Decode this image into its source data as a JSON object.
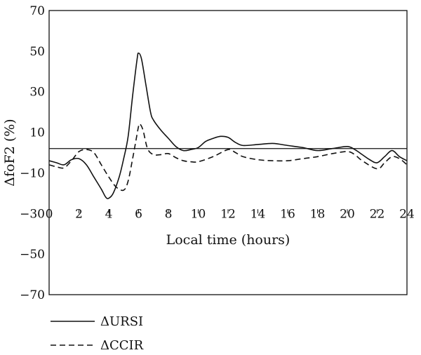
{
  "chart_data": {
    "type": "line",
    "title": "",
    "xlabel": "Local time (hours)",
    "ylabel": "ΔfoF2 (%)",
    "xlim": [
      0,
      24
    ],
    "ylim": [
      -70,
      70
    ],
    "x_ticks": [
      "0",
      "2",
      "4",
      "6",
      "8",
      "10",
      "12",
      "14",
      "16",
      "18",
      "20",
      "22",
      "24"
    ],
    "y_ticks": [
      "70",
      "50",
      "30",
      "10",
      "−10",
      "−30",
      "−50",
      "−70"
    ],
    "grid": false,
    "legend_position": "bottom-left",
    "reference_line_y": 2,
    "series": [
      {
        "name": "ΔURSI",
        "style": "solid",
        "color": "#111111",
        "points": [
          [
            0,
            -4
          ],
          [
            0.5,
            -5
          ],
          [
            1,
            -6
          ],
          [
            1.5,
            -3.5
          ],
          [
            2,
            -3
          ],
          [
            2.5,
            -6
          ],
          [
            3,
            -12
          ],
          [
            3.5,
            -18
          ],
          [
            3.8,
            -22
          ],
          [
            4,
            -22.5
          ],
          [
            4.3,
            -20
          ],
          [
            4.7,
            -12
          ],
          [
            5,
            -3
          ],
          [
            5.3,
            8
          ],
          [
            5.6,
            28
          ],
          [
            5.9,
            46
          ],
          [
            6,
            49
          ],
          [
            6.2,
            46
          ],
          [
            6.5,
            33
          ],
          [
            6.8,
            20
          ],
          [
            7,
            16
          ],
          [
            7.5,
            11
          ],
          [
            8,
            7
          ],
          [
            8.5,
            3
          ],
          [
            9,
            1
          ],
          [
            9.5,
            1.5
          ],
          [
            10,
            2.5
          ],
          [
            10.5,
            5.5
          ],
          [
            11,
            7
          ],
          [
            11.5,
            8
          ],
          [
            12,
            7.5
          ],
          [
            12.5,
            5
          ],
          [
            13,
            3.5
          ],
          [
            14,
            4
          ],
          [
            15,
            4.5
          ],
          [
            16,
            3.5
          ],
          [
            17,
            2.5
          ],
          [
            18,
            1
          ],
          [
            19,
            2
          ],
          [
            20,
            3
          ],
          [
            20.5,
            1.5
          ],
          [
            21,
            -1
          ],
          [
            21.5,
            -3.5
          ],
          [
            22,
            -5
          ],
          [
            22.5,
            -2
          ],
          [
            23,
            1
          ],
          [
            23.5,
            -2
          ],
          [
            24,
            -4
          ]
        ]
      },
      {
        "name": "ΔCCIR",
        "style": "dashed",
        "color": "#111111",
        "points": [
          [
            0,
            -6
          ],
          [
            0.5,
            -7
          ],
          [
            1,
            -7.5
          ],
          [
            1.5,
            -4
          ],
          [
            2,
            0.5
          ],
          [
            2.5,
            1.5
          ],
          [
            3,
            0
          ],
          [
            3.5,
            -6
          ],
          [
            4,
            -12
          ],
          [
            4.5,
            -17
          ],
          [
            5,
            -18.5
          ],
          [
            5.3,
            -14
          ],
          [
            5.6,
            -3
          ],
          [
            5.8,
            5
          ],
          [
            6,
            13
          ],
          [
            6.1,
            14
          ],
          [
            6.3,
            11
          ],
          [
            6.6,
            2
          ],
          [
            7,
            -1
          ],
          [
            7.5,
            -1
          ],
          [
            8,
            -0.5
          ],
          [
            8.5,
            -2.5
          ],
          [
            9,
            -4
          ],
          [
            9.5,
            -4.5
          ],
          [
            10,
            -4.5
          ],
          [
            11,
            -2
          ],
          [
            12,
            1.5
          ],
          [
            12.5,
            0
          ],
          [
            13,
            -2
          ],
          [
            14,
            -3.5
          ],
          [
            15,
            -4
          ],
          [
            16,
            -4
          ],
          [
            17,
            -3
          ],
          [
            18,
            -2
          ],
          [
            19,
            -0.5
          ],
          [
            20,
            0.5
          ],
          [
            20.5,
            -1
          ],
          [
            21,
            -4
          ],
          [
            22,
            -8
          ],
          [
            22.5,
            -5
          ],
          [
            23,
            -2
          ],
          [
            23.5,
            -3
          ],
          [
            24,
            -6
          ]
        ]
      }
    ]
  }
}
